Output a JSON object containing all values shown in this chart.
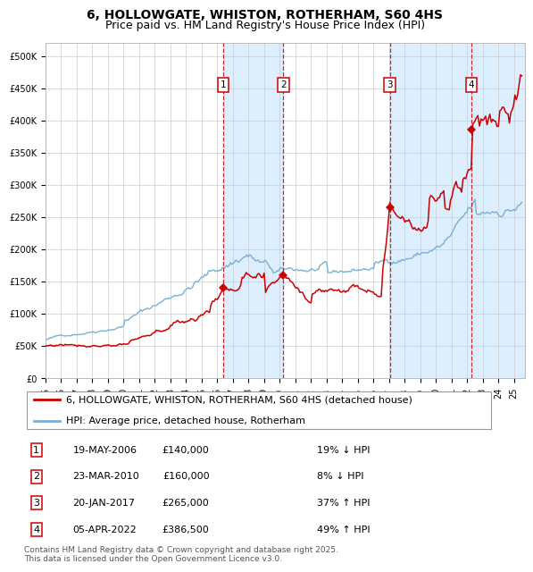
{
  "title": "6, HOLLOWGATE, WHISTON, ROTHERHAM, S60 4HS",
  "subtitle": "Price paid vs. HM Land Registry's House Price Index (HPI)",
  "xlim": [
    1995.0,
    2025.7
  ],
  "ylim": [
    0,
    520000
  ],
  "yticks": [
    0,
    50000,
    100000,
    150000,
    200000,
    250000,
    300000,
    350000,
    400000,
    450000,
    500000
  ],
  "ytick_labels": [
    "£0",
    "£50K",
    "£100K",
    "£150K",
    "£200K",
    "£250K",
    "£300K",
    "£350K",
    "£400K",
    "£450K",
    "£500K"
  ],
  "sale_dates_num": [
    2006.38,
    2010.23,
    2017.05,
    2022.26
  ],
  "sale_prices": [
    140000,
    160000,
    265000,
    386500
  ],
  "sale_labels": [
    "1",
    "2",
    "3",
    "4"
  ],
  "sale_color": "#cc0000",
  "hpi_color": "#7ab0d4",
  "shaded_region_color": "#ddeeff",
  "vline_color": "#cc0000",
  "legend_entries": [
    "6, HOLLOWGATE, WHISTON, ROTHERHAM, S60 4HS (detached house)",
    "HPI: Average price, detached house, Rotherham"
  ],
  "table_entries": [
    {
      "label": "1",
      "date": "19-MAY-2006",
      "price": "£140,000",
      "change": "19% ↓ HPI"
    },
    {
      "label": "2",
      "date": "23-MAR-2010",
      "price": "£160,000",
      "change": "8% ↓ HPI"
    },
    {
      "label": "3",
      "date": "20-JAN-2017",
      "price": "£265,000",
      "change": "37% ↑ HPI"
    },
    {
      "label": "4",
      "date": "05-APR-2022",
      "price": "£386,500",
      "change": "49% ↑ HPI"
    }
  ],
  "footnote": "Contains HM Land Registry data © Crown copyright and database right 2025.\nThis data is licensed under the Open Government Licence v3.0.",
  "title_fontsize": 10,
  "subtitle_fontsize": 9,
  "tick_fontsize": 7,
  "legend_fontsize": 8,
  "table_fontsize": 8,
  "footnote_fontsize": 6.5
}
